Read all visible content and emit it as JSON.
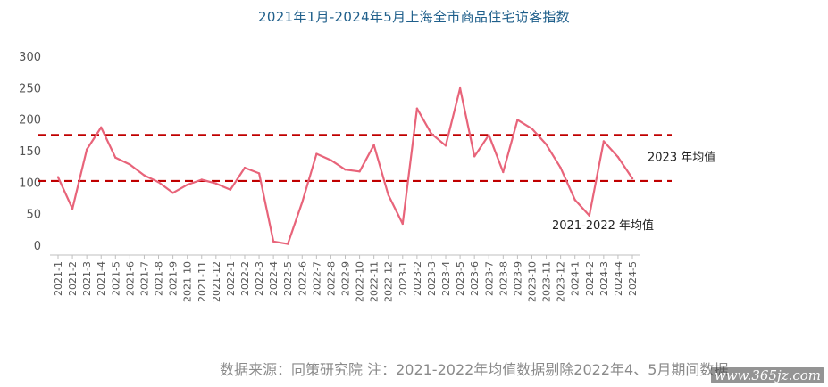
{
  "chart_data": {
    "type": "line",
    "title": "2021年1月-2024年5月上海全市商品住宅访客指数",
    "xlabel": "",
    "ylabel": "",
    "ylim": [
      0,
      300
    ],
    "yticks": [
      0,
      50,
      100,
      150,
      200,
      250,
      300
    ],
    "grid": false,
    "legend": "none",
    "categories": [
      "2021-1",
      "2021-2",
      "2021-3",
      "2021-4",
      "2021-5",
      "2021-6",
      "2021-7",
      "2021-8",
      "2021-9",
      "2021-10",
      "2021-11",
      "2021-12",
      "2022-1",
      "2022-2",
      "2022-3",
      "2022-4",
      "2022-5",
      "2022-6",
      "2022-7",
      "2022-8",
      "2022-9",
      "2022-10",
      "2022-11",
      "2022-12",
      "2023-1",
      "2023-2",
      "2023-3",
      "2023-4",
      "2023-5",
      "2023-6",
      "2023-7",
      "2023-8",
      "2023-9",
      "2023-10",
      "2023-11",
      "2023-12",
      "2024-1",
      "2024-2",
      "2024-3",
      "2024-4",
      "2024-5"
    ],
    "series": [
      {
        "color": "#e8647a",
        "values": [
          108,
          58,
          152,
          187,
          139,
          128,
          111,
          100,
          83,
          96,
          104,
          98,
          88,
          123,
          114,
          6,
          2,
          68,
          145,
          135,
          120,
          117,
          159,
          80,
          34,
          217,
          177,
          158,
          249,
          141,
          175,
          116,
          199,
          185,
          160,
          123,
          72,
          47,
          165,
          140,
          106
        ]
      }
    ],
    "reference_lines": [
      {
        "value": 175,
        "label": "2023 年均值",
        "color": "#c00000",
        "style": "dashed"
      },
      {
        "value": 102,
        "label": "2021-2022 年均值",
        "color": "#c00000",
        "style": "dashed"
      }
    ]
  },
  "source_note": "数据来源：同策研究院  注：2021-2022年均值数据剔除2022年4、5月期间数据",
  "site_mark": "www.365jz.com"
}
